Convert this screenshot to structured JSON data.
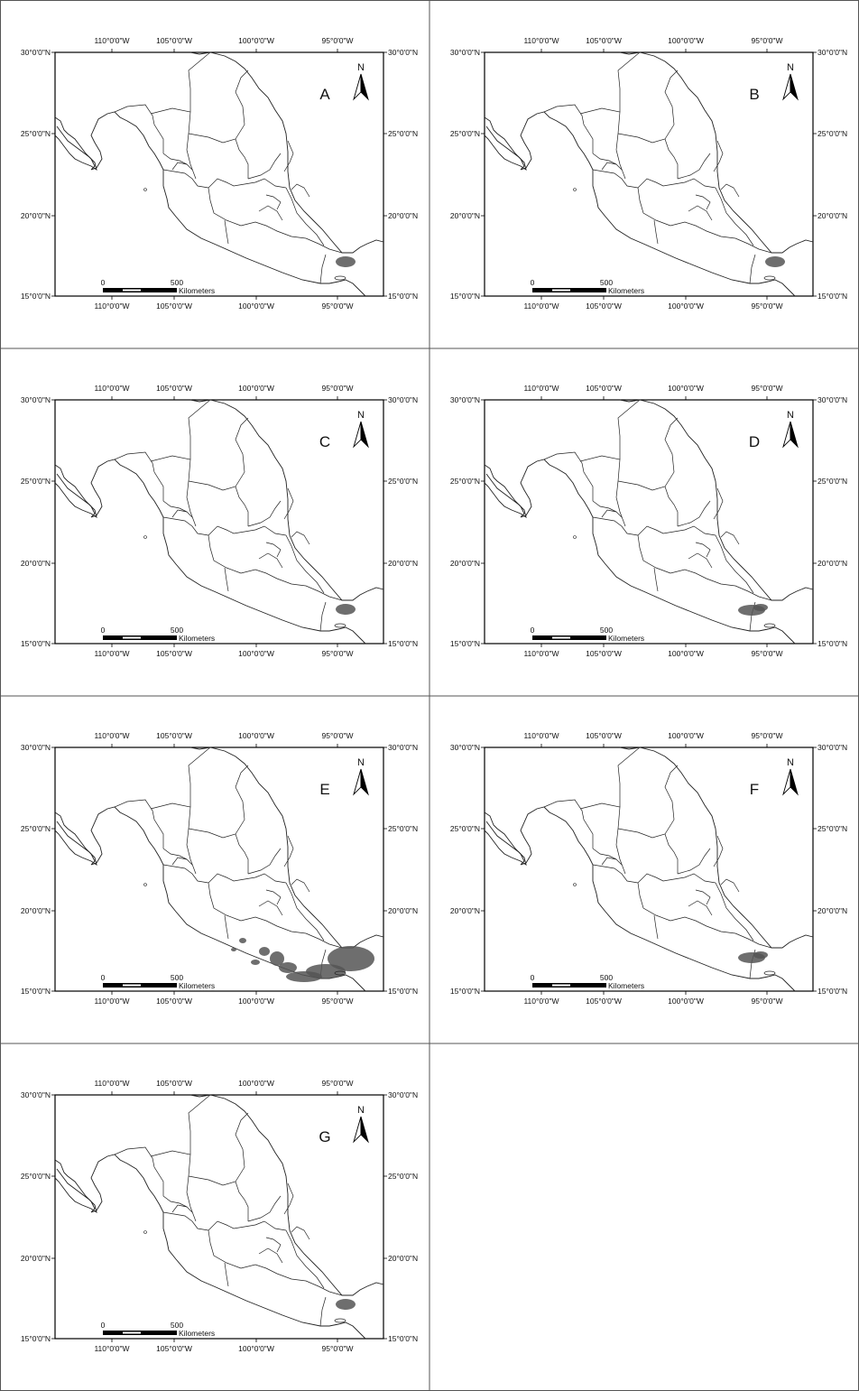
{
  "figure": {
    "panels": [
      {
        "label": "A",
        "intensity": "low"
      },
      {
        "label": "B",
        "intensity": "low"
      },
      {
        "label": "C",
        "intensity": "low"
      },
      {
        "label": "D",
        "intensity": "medium"
      },
      {
        "label": "E",
        "intensity": "high"
      },
      {
        "label": "F",
        "intensity": "medium"
      },
      {
        "label": "G",
        "intensity": "low"
      }
    ],
    "lon_labels": [
      "110°0'0\"W",
      "105°0'0\"W",
      "100°0'0\"W",
      "95°0'0\"W"
    ],
    "lat_labels": [
      "30°0'0\"N",
      "25°0'0\"N",
      "20°0'0\"N",
      "15°0'0\"N"
    ],
    "north_label": "N",
    "scale": {
      "start": "0",
      "end": "500",
      "unit": "Kilometers"
    },
    "colors": {
      "frame": "#000000",
      "land_line": "#222222",
      "presence": "#555555",
      "panel_border": "#555555"
    }
  }
}
